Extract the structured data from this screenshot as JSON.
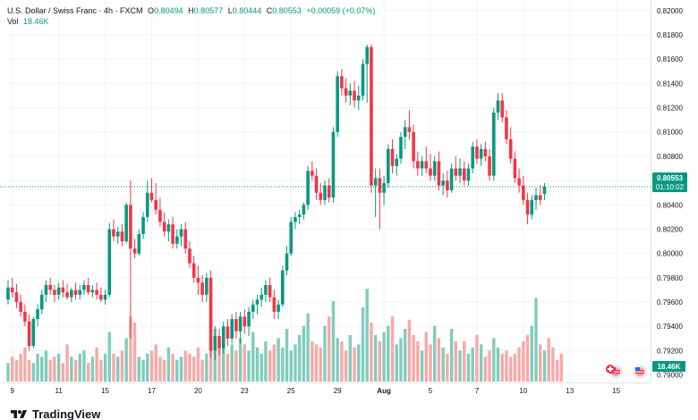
{
  "legend": {
    "symbol": "U.S. Dollar / Swiss Franc · 4h · FXCM",
    "o_label": "O",
    "o_value": "0.80494",
    "h_label": "H",
    "h_value": "0.80577",
    "l_label": "L",
    "l_value": "0.80444",
    "c_label": "C",
    "c_value": "0.80553",
    "change": "+0.00059 (+0.07%)",
    "vol_label": "Vol",
    "vol_value": "18.46K"
  },
  "price_tag": {
    "price": "0.80553",
    "countdown": "01:10:02"
  },
  "volume_tag": "18.46K",
  "brand": "TradingView",
  "colors": {
    "up": "#089981",
    "down": "#f23645",
    "up_vol": "#7fcdbb",
    "down_vol": "#f7a9a7",
    "grid": "#f0f3fa",
    "price_line": "#089981"
  },
  "chart_data": {
    "type": "candlestick",
    "interval": "4h",
    "y_axis": {
      "min": 0.791,
      "max": 0.8205,
      "ticks": [
        "0.82000",
        "0.81800",
        "0.81600",
        "0.81400",
        "0.81200",
        "0.81000",
        "0.80800",
        "0.80600",
        "0.80400",
        "0.80200",
        "0.80000",
        "0.79800",
        "0.79600",
        "0.79400",
        "0.79200",
        "0.79000"
      ]
    },
    "x_axis": {
      "ticks": [
        {
          "label": "9",
          "index": 1
        },
        {
          "label": "11",
          "index": 12
        },
        {
          "label": "15",
          "index": 23
        },
        {
          "label": "17",
          "index": 34
        },
        {
          "label": "20",
          "index": 45
        },
        {
          "label": "23",
          "index": 56
        },
        {
          "label": "25",
          "index": 67
        },
        {
          "label": "29",
          "index": 78
        },
        {
          "label": "Aug",
          "index": 89
        },
        {
          "label": "5",
          "index": 100
        },
        {
          "label": "7",
          "index": 111
        },
        {
          "label": "10",
          "index": 122
        },
        {
          "label": "13",
          "index": 133
        },
        {
          "label": "15",
          "index": 144
        }
      ]
    },
    "ohlc": [
      [
        0.7962,
        0.7978,
        0.7958,
        0.7972
      ],
      [
        0.7972,
        0.798,
        0.7964,
        0.7968
      ],
      [
        0.7968,
        0.7975,
        0.7955,
        0.796
      ],
      [
        0.796,
        0.7966,
        0.7948,
        0.7952
      ],
      [
        0.7952,
        0.7958,
        0.794,
        0.7944
      ],
      [
        0.7944,
        0.795,
        0.792,
        0.7924
      ],
      [
        0.7924,
        0.7948,
        0.7922,
        0.7946
      ],
      [
        0.7946,
        0.7958,
        0.794,
        0.7954
      ],
      [
        0.7954,
        0.797,
        0.795,
        0.7966
      ],
      [
        0.7966,
        0.7978,
        0.796,
        0.7974
      ],
      [
        0.7974,
        0.798,
        0.7966,
        0.797
      ],
      [
        0.797,
        0.7974,
        0.796,
        0.7966
      ],
      [
        0.7966,
        0.7976,
        0.7962,
        0.7972
      ],
      [
        0.7972,
        0.7978,
        0.7964,
        0.7968
      ],
      [
        0.7968,
        0.7975,
        0.7962,
        0.7964
      ],
      [
        0.7964,
        0.7972,
        0.796,
        0.797
      ],
      [
        0.797,
        0.7976,
        0.7962,
        0.7966
      ],
      [
        0.7966,
        0.7974,
        0.7962,
        0.797
      ],
      [
        0.797,
        0.7978,
        0.7966,
        0.7974
      ],
      [
        0.7974,
        0.798,
        0.7966,
        0.7968
      ],
      [
        0.7968,
        0.7974,
        0.7964,
        0.797
      ],
      [
        0.797,
        0.7976,
        0.7962,
        0.7966
      ],
      [
        0.7966,
        0.7972,
        0.796,
        0.7962
      ],
      [
        0.7962,
        0.797,
        0.7958,
        0.7966
      ],
      [
        0.7966,
        0.8025,
        0.7964,
        0.802
      ],
      [
        0.802,
        0.8028,
        0.801,
        0.8014
      ],
      [
        0.8014,
        0.8022,
        0.8008,
        0.8018
      ],
      [
        0.8018,
        0.8024,
        0.8006,
        0.801
      ],
      [
        0.801,
        0.8042,
        0.8008,
        0.804
      ],
      [
        0.804,
        0.806,
        0.793,
        0.8004
      ],
      [
        0.8004,
        0.8012,
        0.7996,
        0.8
      ],
      [
        0.8,
        0.802,
        0.7998,
        0.8016
      ],
      [
        0.8016,
        0.8034,
        0.8012,
        0.803
      ],
      [
        0.803,
        0.806,
        0.8026,
        0.805
      ],
      [
        0.805,
        0.8062,
        0.8042,
        0.8044
      ],
      [
        0.8044,
        0.8058,
        0.8032,
        0.8036
      ],
      [
        0.8036,
        0.8046,
        0.8022,
        0.8026
      ],
      [
        0.8026,
        0.8034,
        0.8014,
        0.8018
      ],
      [
        0.8018,
        0.8028,
        0.801,
        0.8024
      ],
      [
        0.8024,
        0.803,
        0.8004,
        0.8008
      ],
      [
        0.8008,
        0.802,
        0.8004,
        0.8014
      ],
      [
        0.8014,
        0.8024,
        0.8006,
        0.802
      ],
      [
        0.802,
        0.8026,
        0.8,
        0.8004
      ],
      [
        0.8004,
        0.801,
        0.7988,
        0.7992
      ],
      [
        0.7992,
        0.7998,
        0.7976,
        0.798
      ],
      [
        0.798,
        0.799,
        0.7966,
        0.7976
      ],
      [
        0.7976,
        0.7982,
        0.796,
        0.7966
      ],
      [
        0.7966,
        0.7984,
        0.796,
        0.798
      ],
      [
        0.798,
        0.7986,
        0.7914,
        0.792
      ],
      [
        0.792,
        0.794,
        0.7912,
        0.7932
      ],
      [
        0.7932,
        0.7938,
        0.7916,
        0.7922
      ],
      [
        0.7922,
        0.7944,
        0.7918,
        0.794
      ],
      [
        0.794,
        0.7946,
        0.7924,
        0.793
      ],
      [
        0.793,
        0.795,
        0.7926,
        0.7946
      ],
      [
        0.7946,
        0.7952,
        0.793,
        0.7936
      ],
      [
        0.7936,
        0.7952,
        0.7926,
        0.7948
      ],
      [
        0.7948,
        0.7954,
        0.7934,
        0.794
      ],
      [
        0.794,
        0.7956,
        0.7932,
        0.7952
      ],
      [
        0.7952,
        0.7962,
        0.7946,
        0.7958
      ],
      [
        0.7958,
        0.7966,
        0.795,
        0.7962
      ],
      [
        0.7962,
        0.7972,
        0.7956,
        0.7966
      ],
      [
        0.7966,
        0.7978,
        0.796,
        0.7974
      ],
      [
        0.7974,
        0.798,
        0.796,
        0.7964
      ],
      [
        0.7964,
        0.797,
        0.7946,
        0.7952
      ],
      [
        0.7952,
        0.7962,
        0.7946,
        0.7958
      ],
      [
        0.7958,
        0.799,
        0.7956,
        0.7986
      ],
      [
        0.7986,
        0.8006,
        0.7982,
        0.8
      ],
      [
        0.8,
        0.803,
        0.7998,
        0.8026
      ],
      [
        0.8026,
        0.8034,
        0.802,
        0.803
      ],
      [
        0.803,
        0.8036,
        0.8024,
        0.8032
      ],
      [
        0.8032,
        0.8042,
        0.8028,
        0.804
      ],
      [
        0.804,
        0.8072,
        0.8036,
        0.8068
      ],
      [
        0.8068,
        0.8076,
        0.806,
        0.8064
      ],
      [
        0.8064,
        0.807,
        0.8044,
        0.805
      ],
      [
        0.805,
        0.8058,
        0.804,
        0.8044
      ],
      [
        0.8044,
        0.806,
        0.804,
        0.8056
      ],
      [
        0.8056,
        0.8062,
        0.8042,
        0.8046
      ],
      [
        0.8046,
        0.8104,
        0.8042,
        0.81
      ],
      [
        0.81,
        0.815,
        0.8096,
        0.8146
      ],
      [
        0.8146,
        0.8152,
        0.813,
        0.8136
      ],
      [
        0.8136,
        0.8144,
        0.8124,
        0.813
      ],
      [
        0.813,
        0.814,
        0.8122,
        0.8134
      ],
      [
        0.8134,
        0.8142,
        0.812,
        0.8126
      ],
      [
        0.8126,
        0.8138,
        0.8118,
        0.813
      ],
      [
        0.813,
        0.816,
        0.8126,
        0.8156
      ],
      [
        0.8156,
        0.8172,
        0.8124,
        0.817
      ],
      [
        0.817,
        0.8172,
        0.805,
        0.8056
      ],
      [
        0.8056,
        0.807,
        0.803,
        0.8062
      ],
      [
        0.8062,
        0.807,
        0.802,
        0.805
      ],
      [
        0.805,
        0.8064,
        0.804,
        0.8058
      ],
      [
        0.8058,
        0.809,
        0.8054,
        0.8086
      ],
      [
        0.8086,
        0.8094,
        0.8066,
        0.8072
      ],
      [
        0.8072,
        0.8082,
        0.8064,
        0.8078
      ],
      [
        0.8078,
        0.81,
        0.8074,
        0.8096
      ],
      [
        0.8096,
        0.811,
        0.8086,
        0.8104
      ],
      [
        0.8104,
        0.8118,
        0.8094,
        0.81
      ],
      [
        0.81,
        0.8106,
        0.807,
        0.8076
      ],
      [
        0.8076,
        0.8084,
        0.8064,
        0.807
      ],
      [
        0.807,
        0.808,
        0.8064,
        0.8076
      ],
      [
        0.8076,
        0.8088,
        0.8066,
        0.807
      ],
      [
        0.807,
        0.8082,
        0.806,
        0.8064
      ],
      [
        0.8064,
        0.808,
        0.806,
        0.8076
      ],
      [
        0.8076,
        0.8084,
        0.8052,
        0.8056
      ],
      [
        0.8056,
        0.8066,
        0.8048,
        0.806
      ],
      [
        0.806,
        0.8068,
        0.8046,
        0.8052
      ],
      [
        0.8052,
        0.8074,
        0.805,
        0.807
      ],
      [
        0.807,
        0.808,
        0.806,
        0.8064
      ],
      [
        0.8064,
        0.8078,
        0.8058,
        0.807
      ],
      [
        0.807,
        0.8076,
        0.8056,
        0.806
      ],
      [
        0.806,
        0.8074,
        0.8056,
        0.807
      ],
      [
        0.807,
        0.8092,
        0.8066,
        0.8088
      ],
      [
        0.8088,
        0.8094,
        0.8074,
        0.8078
      ],
      [
        0.8078,
        0.809,
        0.8072,
        0.8086
      ],
      [
        0.8086,
        0.8092,
        0.8076,
        0.808
      ],
      [
        0.808,
        0.8086,
        0.806,
        0.8064
      ],
      [
        0.8064,
        0.812,
        0.806,
        0.8116
      ],
      [
        0.8116,
        0.8132,
        0.811,
        0.8126
      ],
      [
        0.8126,
        0.8132,
        0.8108,
        0.8112
      ],
      [
        0.8112,
        0.8118,
        0.809,
        0.8094
      ],
      [
        0.8094,
        0.8104,
        0.8074,
        0.8078
      ],
      [
        0.8078,
        0.8084,
        0.8058,
        0.8062
      ],
      [
        0.8062,
        0.807,
        0.805,
        0.8056
      ],
      [
        0.8056,
        0.8064,
        0.804,
        0.8044
      ],
      [
        0.8044,
        0.805,
        0.8024,
        0.8032
      ],
      [
        0.8032,
        0.8048,
        0.8028,
        0.8044
      ],
      [
        0.8044,
        0.8054,
        0.8036,
        0.8048
      ],
      [
        0.8048,
        0.8056,
        0.804,
        0.8044
      ],
      [
        0.8049,
        0.8058,
        0.8044,
        0.8055
      ]
    ],
    "volume": [
      6,
      8,
      7,
      9,
      11,
      7,
      6,
      9,
      8,
      10,
      7,
      8,
      9,
      6,
      12,
      8,
      7,
      9,
      10,
      6,
      8,
      11,
      7,
      9,
      16,
      9,
      8,
      10,
      14,
      21,
      19,
      8,
      7,
      9,
      10,
      12,
      8,
      7,
      11,
      9,
      7,
      8,
      10,
      9,
      8,
      11,
      7,
      9,
      13,
      17,
      11,
      15,
      9,
      12,
      10,
      14,
      12,
      10,
      16,
      11,
      9,
      13,
      10,
      12,
      14,
      11,
      17,
      10,
      12,
      15,
      18,
      22,
      13,
      12,
      11,
      18,
      21,
      26,
      14,
      13,
      10,
      15,
      11,
      12,
      24,
      30,
      19,
      15,
      13,
      16,
      18,
      21,
      12,
      14,
      17,
      20,
      15,
      13,
      10,
      16,
      12,
      18,
      14,
      11,
      9,
      17,
      13,
      10,
      13,
      9,
      11,
      15,
      12,
      8,
      10,
      14,
      11,
      9,
      10,
      8,
      9,
      11,
      13,
      15,
      18,
      27,
      12,
      10,
      14,
      11,
      7,
      9
    ]
  }
}
